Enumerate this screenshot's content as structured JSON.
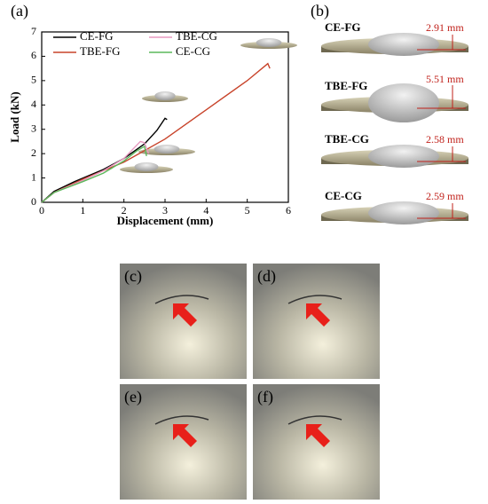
{
  "chart_data": {
    "type": "line",
    "xlabel": "Displacement (mm)",
    "ylabel": "Load (kN)",
    "xlim": [
      0,
      6
    ],
    "ylim": [
      0,
      7
    ],
    "xticks": [
      0,
      1,
      2,
      3,
      4,
      5,
      6
    ],
    "yticks": [
      0,
      1,
      2,
      3,
      4,
      5,
      6,
      7
    ],
    "series": [
      {
        "name": "CE-FG",
        "color": "#000000",
        "x": [
          0,
          0.3,
          0.8,
          1.5,
          2,
          2.5,
          2.8,
          3.0,
          3.05
        ],
        "values": [
          0,
          0.45,
          0.85,
          1.35,
          1.8,
          2.4,
          2.95,
          3.45,
          3.4
        ]
      },
      {
        "name": "TBE-FG",
        "color": "#c8432a",
        "x": [
          0,
          0.3,
          1,
          2,
          3,
          4,
          5,
          5.5,
          5.55
        ],
        "values": [
          0,
          0.4,
          0.95,
          1.65,
          2.6,
          3.8,
          5.0,
          5.7,
          5.5
        ]
      },
      {
        "name": "TBE-CG",
        "color": "#e89ac0",
        "x": [
          0,
          0.3,
          1,
          1.5,
          2,
          2.4,
          2.5,
          2.6
        ],
        "values": [
          0,
          0.4,
          0.9,
          1.3,
          1.8,
          2.5,
          2.45,
          2.0
        ]
      },
      {
        "name": "CE-CG",
        "color": "#5cb85c",
        "x": [
          0,
          0.3,
          1,
          1.5,
          2,
          2.3,
          2.5,
          2.55
        ],
        "values": [
          0,
          0.4,
          0.85,
          1.2,
          1.7,
          2.1,
          2.3,
          1.9
        ]
      }
    ]
  },
  "figure": {
    "panel_labels": [
      "(a)",
      "(b)",
      "(c)",
      "(d)",
      "(e)",
      "(f)"
    ],
    "samples": [
      {
        "name": "CE-FG",
        "height": "2.91 mm"
      },
      {
        "name": "TBE-FG",
        "height": "5.51 mm"
      },
      {
        "name": "TBE-CG",
        "height": "2.58 mm"
      },
      {
        "name": "CE-CG",
        "height": "2.59 mm"
      }
    ]
  }
}
